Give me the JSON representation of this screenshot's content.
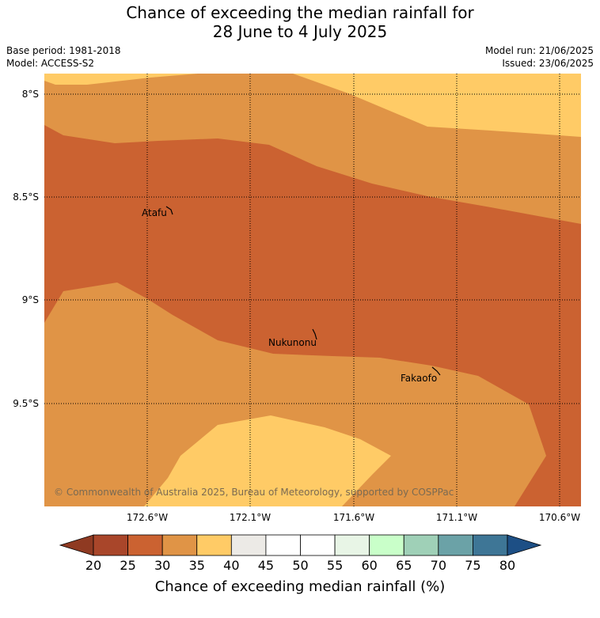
{
  "title": {
    "line1": "Chance of exceeding the median rainfall for",
    "line2": "28 June to 4 July 2025"
  },
  "meta": {
    "base_period": "Base period: 1981-2018",
    "model": "Model: ACCESS-S2",
    "model_run": "Model run: 21/06/2025",
    "issued": "Issued: 23/06/2025"
  },
  "map": {
    "lat_labels": [
      "8°S",
      "8.5°S",
      "9°S",
      "9.5°S"
    ],
    "lon_labels": [
      "172.6°W",
      "172.1°W",
      "171.6°W",
      "171.1°W",
      "170.6°W"
    ],
    "places": [
      "Atafu",
      "Nukunonu",
      "Fakaofo"
    ],
    "copyright": "© Commonwealth of Australia 2025, Bureau of Meteorology, supported by COSPPac",
    "category_colors": {
      "20-25": "#A9462A",
      "25-30": "#CB6231",
      "30-35": "#E09446",
      "35-40": "#FFCB66"
    }
  },
  "colorbar": {
    "ticks": [
      "20",
      "25",
      "30",
      "35",
      "40",
      "45",
      "50",
      "55",
      "60",
      "65",
      "70",
      "75",
      "80"
    ],
    "colors": [
      "#A9462A",
      "#CB6231",
      "#E09446",
      "#FFCB66",
      "#ECEAE6",
      "#FFFFFF",
      "#FFFFFF",
      "#E8F5E6",
      "#C9FFC9",
      "#9FD0B7",
      "#6BA2A7",
      "#3E7696"
    ],
    "under_color": "#8F3A22",
    "over_color": "#1D4F85",
    "label": "Chance of exceeding median rainfall (%)"
  }
}
